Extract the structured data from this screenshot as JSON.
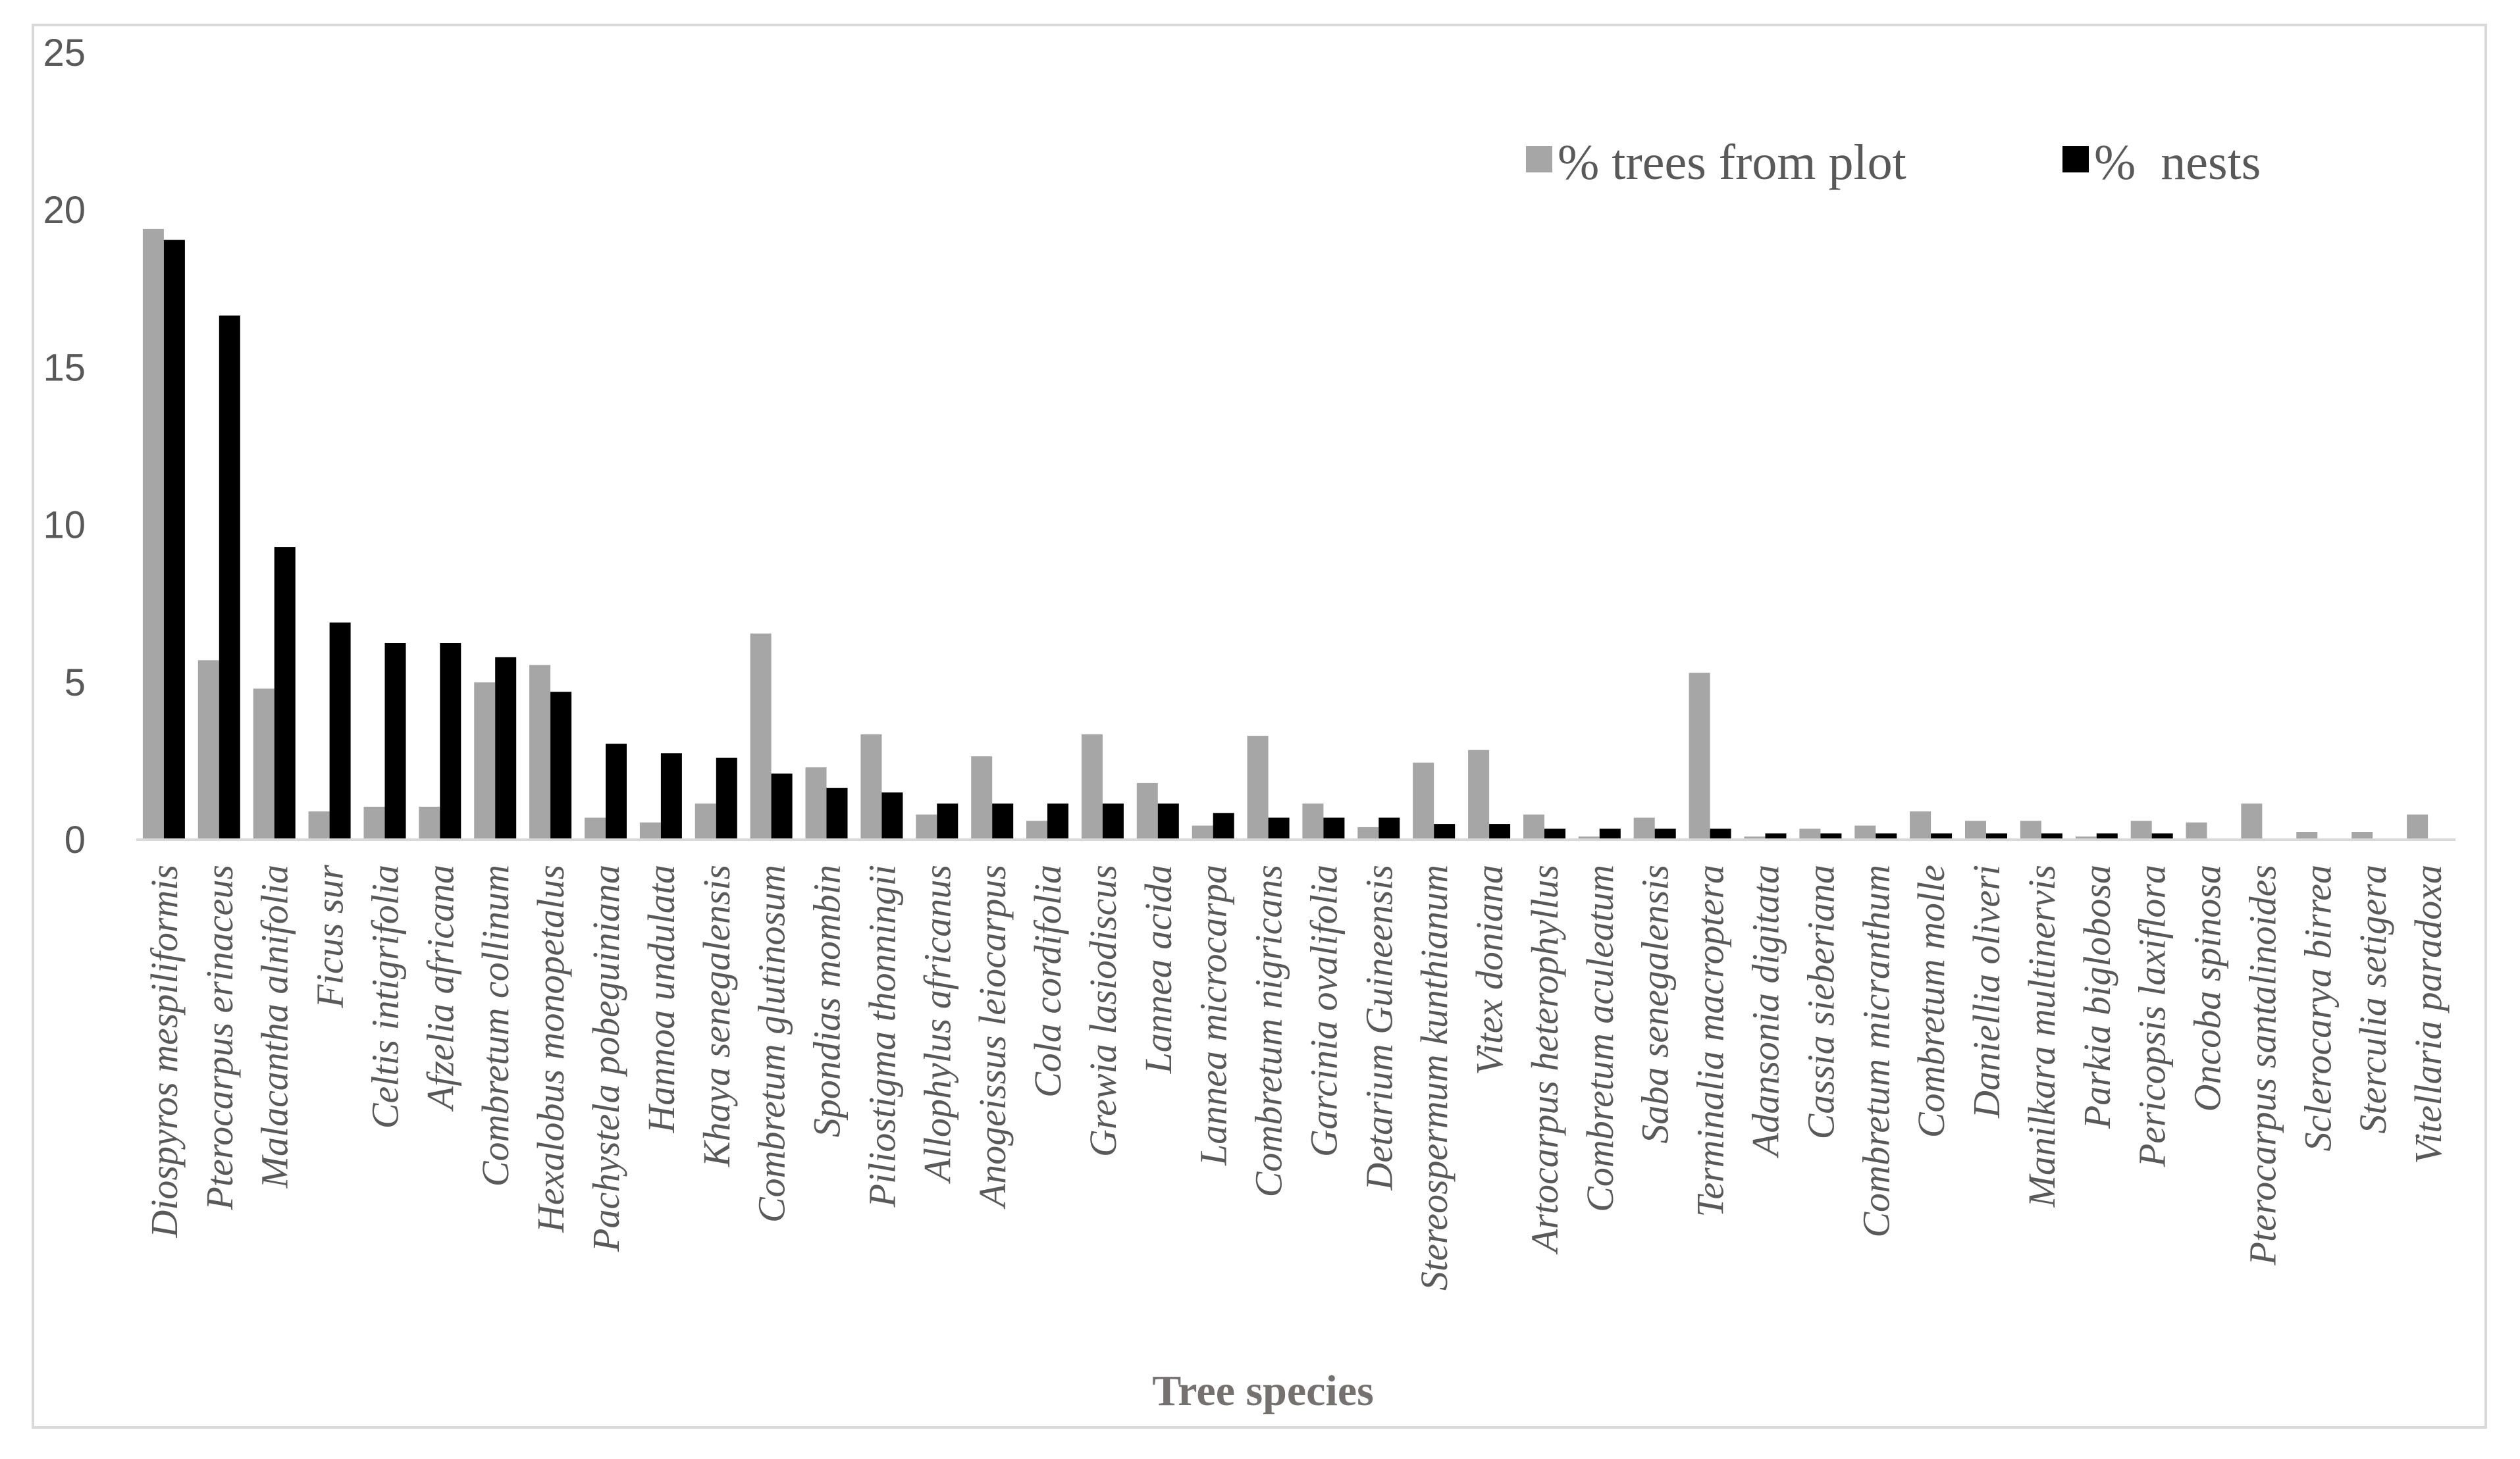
{
  "chart_data": {
    "type": "bar",
    "title": "",
    "xlabel": "Tree species",
    "ylabel": "",
    "ylim": [
      0,
      25
    ],
    "yticks": [
      "0",
      "5",
      "10",
      "15",
      "20",
      "25"
    ],
    "grid": false,
    "legend_position": "top-right",
    "categories": [
      "Diospyros mespiliformis",
      "Pterocarpus erinaceus",
      "Malacantha alnifolia",
      "Ficus sur",
      "Celtis intigrifolia",
      "Afzelia africana",
      "Combretum collinum",
      "Hexalobus monopetalus",
      "Pachystela pobeguiniana",
      "Hannoa undulata",
      "Khaya senegalensis",
      "Combretum glutinosum",
      "Spondias mombin",
      "Piliostigma thonningii",
      "Allophylus africanus",
      "Anogeissus leiocarpus",
      "Cola cordifolia",
      "Grewia lasiodiscus",
      "Lannea acida",
      "Lannea microcarpa",
      "Combretum nigricans",
      "Garcinia ovalifolia",
      "Detarium Guineensis",
      "Stereospermum kunthianum",
      "Vitex doniana",
      "Artocarpus heterophyllus",
      "Combretum aculeatum",
      "Saba senegalensis",
      "Terminalia macroptera",
      "Adansonia digitata",
      "Cassia sieberiana",
      "Combretum micranthum",
      "Combretum molle",
      "Daniellia oliveri",
      "Manilkara multinervis",
      "Parkia biglobosa",
      "Pericopsis laxiflora",
      "Oncoba spinosa",
      "Pterocarpus santalinoides",
      "Sclerocarya birrea",
      "Sterculia setigera",
      "Vitellaria paradoxa"
    ],
    "series": [
      {
        "name": "% trees from plot",
        "color": "#a6a6a6",
        "values": [
          19.4,
          5.7,
          4.8,
          0.9,
          1.05,
          1.05,
          5.0,
          5.55,
          0.7,
          0.55,
          1.15,
          6.55,
          2.3,
          3.35,
          0.8,
          2.65,
          0.6,
          3.35,
          1.8,
          0.45,
          3.3,
          1.15,
          0.4,
          2.45,
          2.85,
          0.8,
          0.1,
          0.7,
          5.3,
          0.1,
          0.35,
          0.45,
          0.9,
          0.6,
          0.6,
          0.1,
          0.6,
          0.55,
          1.15,
          0.25,
          0.25,
          0.8
        ]
      },
      {
        "name": "%  nests",
        "color": "#000000",
        "values": [
          19.05,
          16.65,
          9.3,
          6.9,
          6.25,
          6.25,
          5.8,
          4.7,
          3.05,
          2.75,
          2.6,
          2.1,
          1.65,
          1.5,
          1.15,
          1.15,
          1.15,
          1.15,
          1.15,
          0.85,
          0.7,
          0.7,
          0.7,
          0.5,
          0.5,
          0.35,
          0.35,
          0.35,
          0.35,
          0.2,
          0.2,
          0.2,
          0.2,
          0.2,
          0.2,
          0.2,
          0.2,
          0,
          0,
          0,
          0,
          0
        ]
      }
    ]
  }
}
